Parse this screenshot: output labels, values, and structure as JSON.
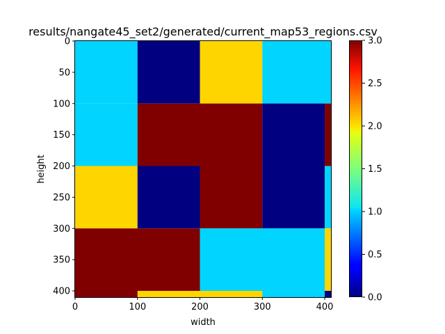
{
  "chart_data": {
    "type": "heatmap",
    "title": "results/nangate45_set2/generated/current_map53_regions.csv",
    "xlabel": "width",
    "ylabel": "height",
    "xlim": [
      0,
      410
    ],
    "ylim": [
      410,
      0
    ],
    "x_ticks": [
      0,
      100,
      200,
      300,
      400
    ],
    "y_ticks": [
      0,
      50,
      100,
      150,
      200,
      250,
      300,
      350,
      400
    ],
    "colormap": "jet",
    "colorbar": {
      "vmin": 0.0,
      "vmax": 3.0,
      "ticks": [
        "0.0",
        "0.5",
        "1.0",
        "1.5",
        "2.0",
        "2.5",
        "3.0"
      ]
    },
    "regions": [
      {
        "x": [
          0,
          100
        ],
        "y": [
          0,
          100
        ],
        "value": 1
      },
      {
        "x": [
          100,
          200
        ],
        "y": [
          0,
          100
        ],
        "value": 0
      },
      {
        "x": [
          200,
          300
        ],
        "y": [
          0,
          100
        ],
        "value": 2
      },
      {
        "x": [
          300,
          410
        ],
        "y": [
          0,
          100
        ],
        "value": 1
      },
      {
        "x": [
          0,
          100
        ],
        "y": [
          100,
          200
        ],
        "value": 1
      },
      {
        "x": [
          100,
          300
        ],
        "y": [
          100,
          200
        ],
        "value": 3
      },
      {
        "x": [
          300,
          400
        ],
        "y": [
          100,
          200
        ],
        "value": 0
      },
      {
        "x": [
          400,
          410
        ],
        "y": [
          100,
          200
        ],
        "value": 3
      },
      {
        "x": [
          0,
          100
        ],
        "y": [
          200,
          300
        ],
        "value": 2
      },
      {
        "x": [
          100,
          200
        ],
        "y": [
          200,
          300
        ],
        "value": 0
      },
      {
        "x": [
          200,
          300
        ],
        "y": [
          200,
          300
        ],
        "value": 3
      },
      {
        "x": [
          300,
          400
        ],
        "y": [
          200,
          300
        ],
        "value": 0
      },
      {
        "x": [
          400,
          410
        ],
        "y": [
          200,
          300
        ],
        "value": 1
      },
      {
        "x": [
          0,
          200
        ],
        "y": [
          300,
          410
        ],
        "value": 3
      },
      {
        "x": [
          200,
          400
        ],
        "y": [
          300,
          410
        ],
        "value": 1
      },
      {
        "x": [
          400,
          410
        ],
        "y": [
          300,
          400
        ],
        "value": 2
      },
      {
        "x": [
          400,
          410
        ],
        "y": [
          400,
          410
        ],
        "value": 0
      },
      {
        "x": [
          100,
          200
        ],
        "y": [
          400,
          410
        ],
        "value": 2
      },
      {
        "x": [
          200,
          300
        ],
        "y": [
          400,
          410
        ],
        "value": 2
      }
    ]
  }
}
